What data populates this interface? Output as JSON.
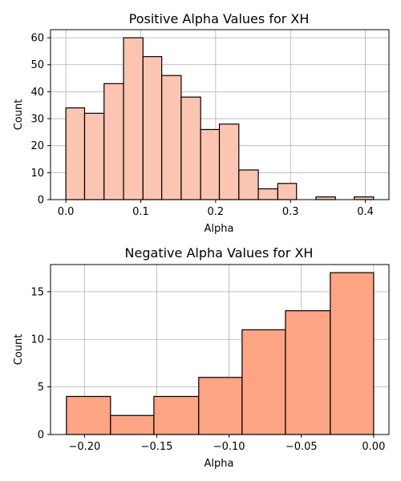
{
  "chart_data": [
    {
      "type": "bar",
      "title": "Positive Alpha Values for XH",
      "xlabel": "Alpha",
      "ylabel": "Count",
      "bar_color": "#fcc5b1",
      "bins": [
        {
          "start": 0.0,
          "end": 0.025,
          "count": 34
        },
        {
          "start": 0.025,
          "end": 0.051,
          "count": 32
        },
        {
          "start": 0.051,
          "end": 0.077,
          "count": 43
        },
        {
          "start": 0.077,
          "end": 0.103,
          "count": 60
        },
        {
          "start": 0.103,
          "end": 0.128,
          "count": 53
        },
        {
          "start": 0.128,
          "end": 0.154,
          "count": 46
        },
        {
          "start": 0.154,
          "end": 0.18,
          "count": 38
        },
        {
          "start": 0.18,
          "end": 0.205,
          "count": 26
        },
        {
          "start": 0.205,
          "end": 0.231,
          "count": 28
        },
        {
          "start": 0.231,
          "end": 0.257,
          "count": 11
        },
        {
          "start": 0.257,
          "end": 0.283,
          "count": 4
        },
        {
          "start": 0.283,
          "end": 0.308,
          "count": 6
        },
        {
          "start": 0.308,
          "end": 0.334,
          "count": 0
        },
        {
          "start": 0.334,
          "end": 0.36,
          "count": 1
        },
        {
          "start": 0.36,
          "end": 0.385,
          "count": 0
        },
        {
          "start": 0.385,
          "end": 0.411,
          "count": 1
        }
      ],
      "xlim": [
        -0.0205,
        0.4315
      ],
      "ylim": [
        0,
        63
      ],
      "xticks": [
        0.0,
        0.1,
        0.2,
        0.3,
        0.4
      ],
      "xtick_labels": [
        "0.0",
        "0.1",
        "0.2",
        "0.3",
        "0.4"
      ],
      "yticks": [
        0,
        10,
        20,
        30,
        40,
        50,
        60
      ],
      "ytick_labels": [
        "0",
        "10",
        "20",
        "30",
        "40",
        "50",
        "60"
      ],
      "grid": true
    },
    {
      "type": "bar",
      "title": "Negative Alpha Values for XH",
      "xlabel": "Alpha",
      "ylabel": "Count",
      "bar_color": "#fca483",
      "bins": [
        {
          "start": -0.2125,
          "end": -0.182,
          "count": 4
        },
        {
          "start": -0.182,
          "end": -0.152,
          "count": 2
        },
        {
          "start": -0.152,
          "end": -0.121,
          "count": 4
        },
        {
          "start": -0.121,
          "end": -0.091,
          "count": 6
        },
        {
          "start": -0.091,
          "end": -0.061,
          "count": 11
        },
        {
          "start": -0.061,
          "end": -0.03,
          "count": 13
        },
        {
          "start": -0.03,
          "end": 0.0,
          "count": 17
        }
      ],
      "xlim": [
        -0.2235,
        0.0106
      ],
      "ylim": [
        0,
        17.85
      ],
      "xticks": [
        -0.2,
        -0.15,
        -0.1,
        -0.05,
        0.0
      ],
      "xtick_labels": [
        "−0.20",
        "−0.15",
        "−0.10",
        "−0.05",
        "0.00"
      ],
      "yticks": [
        0,
        5,
        10,
        15
      ],
      "ytick_labels": [
        "0",
        "5",
        "10",
        "15"
      ],
      "grid": true
    }
  ]
}
